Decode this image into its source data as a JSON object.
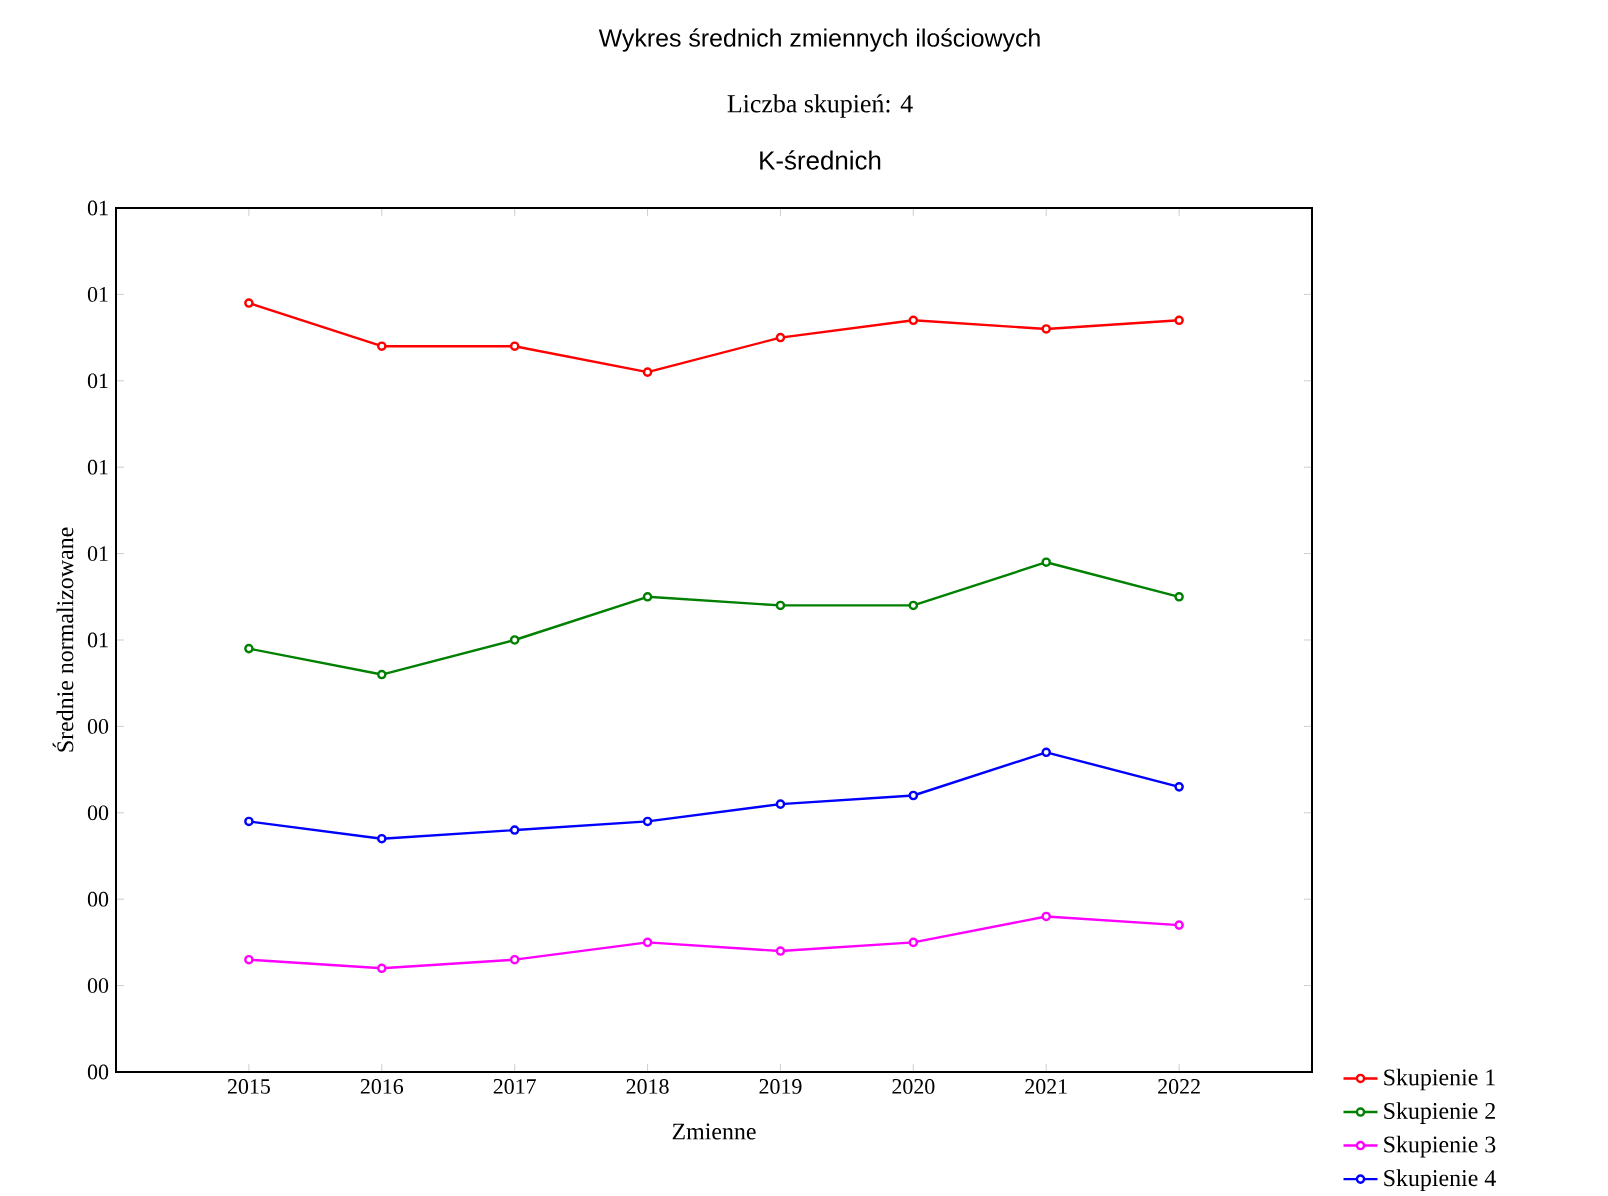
{
  "chart_data": {
    "type": "line",
    "title": "Wykres średnich zmiennych ilościowych",
    "subtitle": "Liczba skupień: 4",
    "annotations": [
      "K-średnich"
    ],
    "xlabel": "Zmienne",
    "ylabel": "Średnie normalizowane",
    "categories": [
      "2015",
      "2016",
      "2017",
      "2018",
      "2019",
      "2020",
      "2021",
      "2022"
    ],
    "series": [
      {
        "name": "Skupienie 1",
        "color": "#ff0000",
        "values": [
          0.89,
          0.84,
          0.84,
          0.81,
          0.85,
          0.87,
          0.86,
          0.87
        ]
      },
      {
        "name": "Skupienie 2",
        "color": "#008000",
        "values": [
          0.49,
          0.46,
          0.5,
          0.55,
          0.54,
          0.54,
          0.59,
          0.55
        ]
      },
      {
        "name": "Skupienie 3",
        "color": "#ff00ff",
        "values": [
          0.13,
          0.12,
          0.13,
          0.15,
          0.14,
          0.15,
          0.18,
          0.17
        ]
      },
      {
        "name": "Skupienie 4",
        "color": "#0000ff",
        "values": [
          0.29,
          0.27,
          0.28,
          0.29,
          0.31,
          0.32,
          0.37,
          0.33
        ]
      }
    ],
    "ylim": [
      0,
      1
    ],
    "yticks": [
      {
        "value": 0,
        "label": "00"
      },
      {
        "value": 0.1,
        "label": "00"
      },
      {
        "value": 0.2,
        "label": "00"
      },
      {
        "value": 0.3,
        "label": "00"
      },
      {
        "value": 0.4,
        "label": "00"
      },
      {
        "value": 0.5,
        "label": "01"
      },
      {
        "value": 0.6,
        "label": "01"
      },
      {
        "value": 0.7,
        "label": "01"
      },
      {
        "value": 0.8,
        "label": "01"
      },
      {
        "value": 0.9,
        "label": "01"
      },
      {
        "value": 1.0,
        "label": "01"
      }
    ],
    "grid": false,
    "legend": "bottom right",
    "marker": "circle",
    "line_style": "solid"
  }
}
